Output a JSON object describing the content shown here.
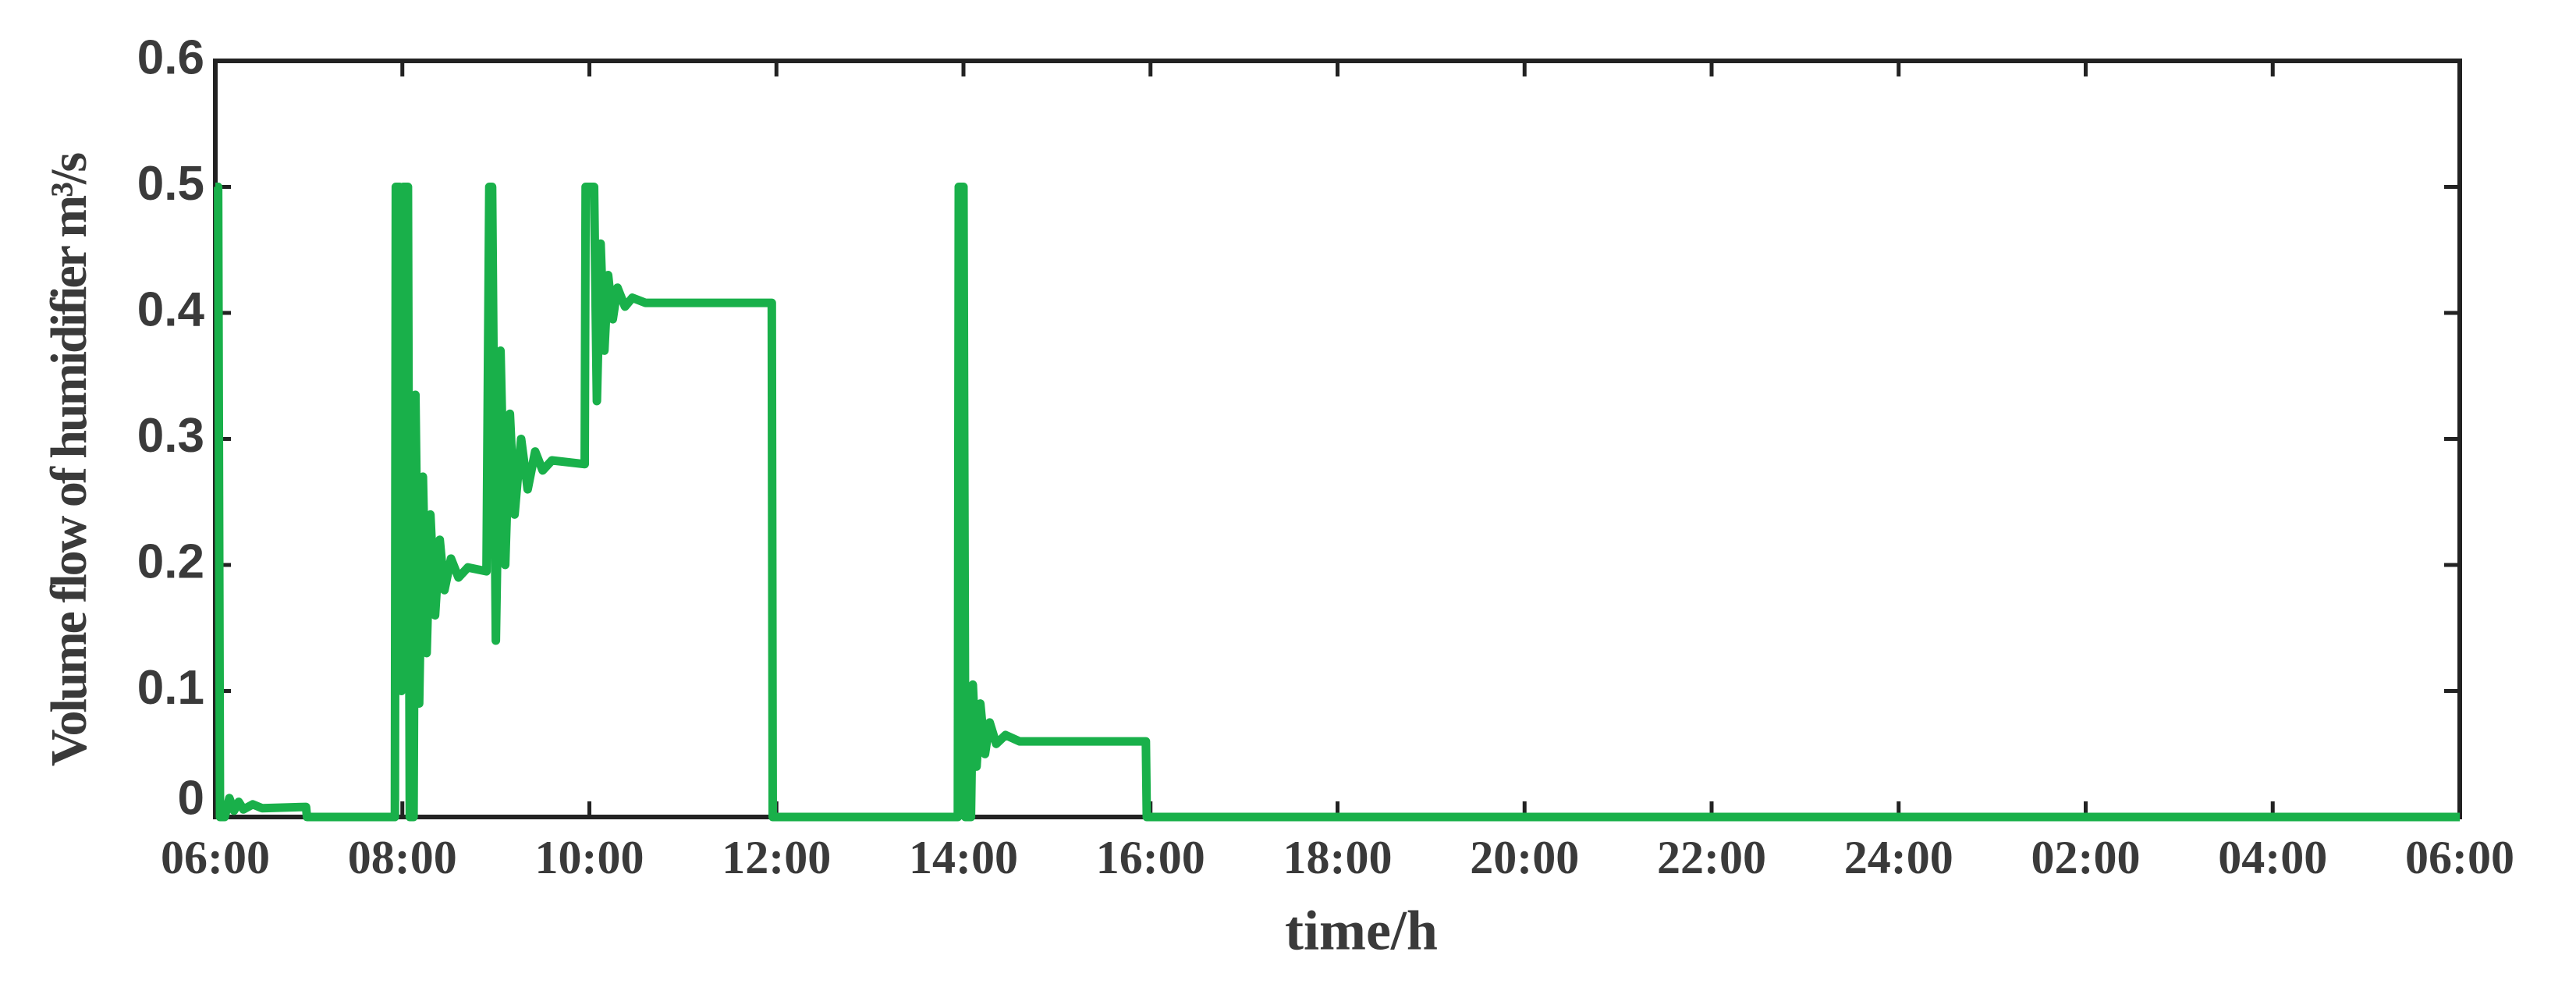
{
  "chart_data": {
    "type": "line",
    "xlabel": "time/h",
    "ylabel": "Volume flow of humidifier   m³/s",
    "color": "#19b04a",
    "x": [
      6.0,
      6.03,
      6.05,
      6.1,
      6.15,
      6.2,
      6.25,
      6.3,
      6.4,
      6.5,
      6.97,
      6.98,
      7.92,
      7.93,
      7.97,
      7.99,
      8.01,
      8.06,
      8.08,
      8.12,
      8.14,
      8.18,
      8.22,
      8.26,
      8.3,
      8.35,
      8.4,
      8.45,
      8.52,
      8.6,
      8.7,
      8.9,
      8.93,
      8.96,
      9.0,
      9.05,
      9.1,
      9.15,
      9.2,
      9.27,
      9.34,
      9.42,
      9.5,
      9.6,
      9.95,
      9.96,
      10.05,
      10.08,
      10.12,
      10.16,
      10.2,
      10.25,
      10.3,
      10.38,
      10.46,
      10.6,
      11.95,
      11.96,
      13.94,
      13.95,
      14.0,
      14.02,
      14.08,
      14.1,
      14.14,
      14.18,
      14.23,
      14.28,
      14.35,
      14.45,
      14.6,
      15.95,
      15.96,
      30
    ],
    "values": [
      0.5,
      0.5,
      0,
      0,
      0.015,
      0.005,
      0.012,
      0.006,
      0.01,
      0.007,
      0.008,
      0,
      0,
      0.5,
      0.5,
      0.1,
      0.5,
      0.5,
      0,
      0,
      0.335,
      0.09,
      0.27,
      0.13,
      0.24,
      0.16,
      0.22,
      0.18,
      0.205,
      0.19,
      0.198,
      0.195,
      0.5,
      0.5,
      0.14,
      0.37,
      0.2,
      0.32,
      0.24,
      0.3,
      0.26,
      0.29,
      0.275,
      0.283,
      0.28,
      0.5,
      0.5,
      0.33,
      0.455,
      0.37,
      0.43,
      0.395,
      0.42,
      0.405,
      0.412,
      0.408,
      0.408,
      0,
      0,
      0.5,
      0.5,
      0,
      0,
      0.105,
      0.04,
      0.09,
      0.05,
      0.075,
      0.058,
      0.065,
      0.06,
      0.06,
      0,
      0
    ],
    "xlim": [
      6,
      30
    ],
    "xticks": [
      {
        "value": 6,
        "label": "06:00"
      },
      {
        "value": 8,
        "label": "08:00"
      },
      {
        "value": 10,
        "label": "10:00"
      },
      {
        "value": 12,
        "label": "12:00"
      },
      {
        "value": 14,
        "label": "14:00"
      },
      {
        "value": 16,
        "label": "16:00"
      },
      {
        "value": 18,
        "label": "18:00"
      },
      {
        "value": 20,
        "label": "20:00"
      },
      {
        "value": 22,
        "label": "22:00"
      },
      {
        "value": 24,
        "label": "24:00"
      },
      {
        "value": 26,
        "label": "02:00"
      },
      {
        "value": 28,
        "label": "04:00"
      },
      {
        "value": 30,
        "label": "06:00"
      }
    ],
    "ylim": [
      0,
      0.6
    ],
    "yticks": [
      0,
      0.1,
      0.2,
      0.3,
      0.4,
      0.5,
      0.6
    ]
  }
}
